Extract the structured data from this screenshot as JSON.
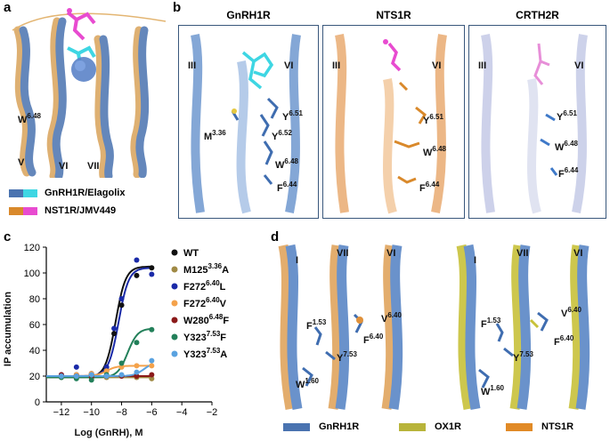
{
  "figure": {
    "panel_labels": {
      "a": "a",
      "b": "b",
      "c": "c",
      "d": "d"
    }
  },
  "panel_a": {
    "helices": [
      "V",
      "VI",
      "VII"
    ],
    "residue": "W",
    "residue_sup": "6.48",
    "legend": [
      {
        "label": "GnRH1R/Elagolix",
        "colors": [
          "#4a73b0",
          "#3ed6e3"
        ]
      },
      {
        "label": "NST1R/JMV449",
        "colors": [
          "#d9892b",
          "#e84bd0"
        ]
      }
    ]
  },
  "panel_b": {
    "boxes": [
      {
        "title": "GnRH1R",
        "helix_left": "III",
        "helix_right": "VI",
        "residues": [
          {
            "name": "Y",
            "sup": "6.51"
          },
          {
            "name": "Y",
            "sup": "6.52"
          },
          {
            "name": "M",
            "sup": "3.36"
          },
          {
            "name": "W",
            "sup": "6.48"
          },
          {
            "name": "F",
            "sup": "6.44"
          }
        ]
      },
      {
        "title": "NTS1R",
        "helix_left": "III",
        "helix_right": "VI",
        "residues": [
          {
            "name": "Y",
            "sup": "6.51"
          },
          {
            "name": "W",
            "sup": "6.48"
          },
          {
            "name": "F",
            "sup": "6.44"
          }
        ]
      },
      {
        "title": "CRTH2R",
        "helix_left": "III",
        "helix_right": "VI",
        "residues": [
          {
            "name": "Y",
            "sup": "6.51"
          },
          {
            "name": "W",
            "sup": "6.48"
          },
          {
            "name": "F",
            "sup": "6.44"
          }
        ]
      }
    ]
  },
  "chart_data": {
    "type": "line",
    "title": "",
    "xlabel": "Log (GnRH), M",
    "ylabel": "IP accumulation",
    "xlim": [
      -13,
      -2
    ],
    "ylim": [
      0,
      120
    ],
    "xticks": [
      "−12",
      "−10",
      "−8",
      "−6",
      "−4",
      "−2"
    ],
    "yticks": [
      "0",
      "20",
      "40",
      "60",
      "80",
      "100",
      "120"
    ],
    "legend_position": "right",
    "series": [
      {
        "name": "WT",
        "color": "#111111",
        "bottom": 19,
        "top": 105,
        "ec50": -8.4,
        "points": [
          [
            -12,
            20
          ],
          [
            -11,
            21
          ],
          [
            -10,
            21
          ],
          [
            -9,
            24
          ],
          [
            -8.5,
            53
          ],
          [
            -8,
            75
          ],
          [
            -7,
            98
          ],
          [
            -6,
            104
          ]
        ]
      },
      {
        "name": "M125",
        "sup": "3.36",
        "suffix": "A",
        "color": "#a08a45",
        "flat": 19,
        "points": [
          [
            -12,
            19
          ],
          [
            -11,
            19
          ],
          [
            -10,
            20
          ],
          [
            -9,
            19
          ],
          [
            -8,
            20
          ],
          [
            -7,
            19
          ],
          [
            -6,
            18
          ]
        ]
      },
      {
        "name": "F272",
        "sup": "6.40",
        "suffix": "L",
        "color": "#1a2aa8",
        "bottom": 20,
        "top": 104,
        "ec50": -8.2,
        "points": [
          [
            -12,
            21
          ],
          [
            -11,
            27
          ],
          [
            -10,
            22
          ],
          [
            -9,
            27
          ],
          [
            -8.5,
            57
          ],
          [
            -8,
            80
          ],
          [
            -7,
            110
          ],
          [
            -6,
            99
          ]
        ]
      },
      {
        "name": "F272",
        "sup": "6.40",
        "suffix": "V",
        "color": "#f4a24b",
        "bottom": 20,
        "top": 28,
        "ec50": -9,
        "points": [
          [
            -12,
            20
          ],
          [
            -11,
            21
          ],
          [
            -10,
            22
          ],
          [
            -9,
            24
          ],
          [
            -8,
            27
          ],
          [
            -7,
            28
          ],
          [
            -6,
            28
          ]
        ]
      },
      {
        "name": "W280",
        "sup": "6.48",
        "suffix": "F",
        "color": "#8b1a1a",
        "flat": 20,
        "points": [
          [
            -12,
            21
          ],
          [
            -11,
            20
          ],
          [
            -10,
            19
          ],
          [
            -9,
            20
          ],
          [
            -8,
            20
          ],
          [
            -7,
            20
          ],
          [
            -6,
            21
          ]
        ]
      },
      {
        "name": "Y323",
        "sup": "7.53",
        "suffix": "F",
        "color": "#23805a",
        "bottom": 19,
        "top": 57,
        "ec50": -7.6,
        "points": [
          [
            -12,
            19
          ],
          [
            -11,
            18
          ],
          [
            -10,
            17
          ],
          [
            -9,
            21
          ],
          [
            -8,
            30
          ],
          [
            -7,
            46
          ],
          [
            -6,
            56
          ]
        ]
      },
      {
        "name": "Y323",
        "sup": "7.53",
        "suffix": "A",
        "color": "#5aa2e0",
        "bottom": 20,
        "top": 31,
        "ec50": -6.5,
        "points": [
          [
            -12,
            20
          ],
          [
            -11,
            20
          ],
          [
            -10,
            21
          ],
          [
            -9,
            20
          ],
          [
            -8,
            21
          ],
          [
            -7,
            23
          ],
          [
            -6,
            32
          ]
        ]
      }
    ]
  },
  "panel_d": {
    "left_helices": [
      "I",
      "VII",
      "VI"
    ],
    "right_helices": [
      "I",
      "VII",
      "VI"
    ],
    "left_residues": [
      {
        "name": "F",
        "sup": "1.53"
      },
      {
        "name": "V",
        "sup": "6.40"
      },
      {
        "name": "F",
        "sup": "6.40"
      },
      {
        "name": "Y",
        "sup": "7.53"
      },
      {
        "name": "W",
        "sup": "1.60"
      }
    ],
    "right_residues": [
      {
        "name": "F",
        "sup": "1.53"
      },
      {
        "name": "V",
        "sup": "6.40"
      },
      {
        "name": "F",
        "sup": "6.40"
      },
      {
        "name": "Y",
        "sup": "7.53"
      },
      {
        "name": "W",
        "sup": "1.60"
      }
    ],
    "legend": [
      {
        "label": "GnRH1R",
        "color": "#4a73b0"
      },
      {
        "label": "OX1R",
        "color": "#b8b43a"
      },
      {
        "label": "NTS1R",
        "color": "#e18a26"
      }
    ]
  }
}
